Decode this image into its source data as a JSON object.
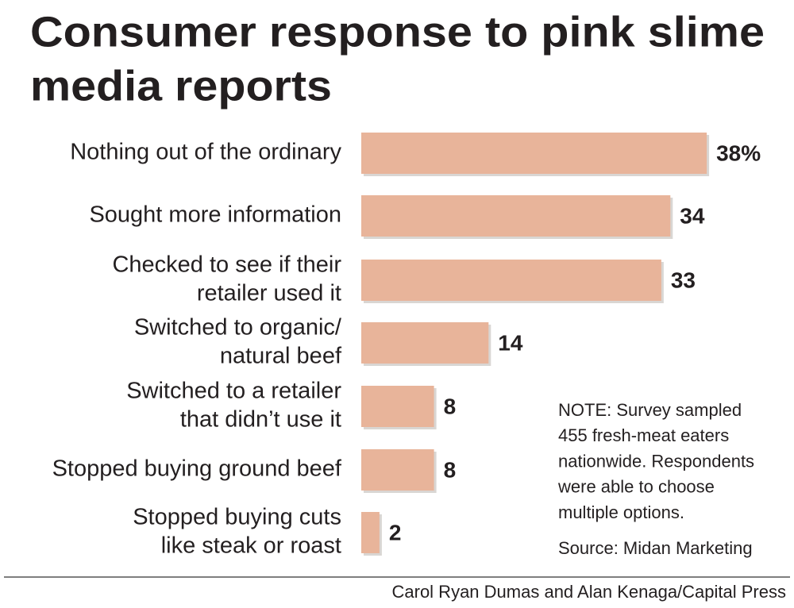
{
  "chart_data": {
    "type": "bar",
    "orientation": "horizontal",
    "title": [
      "Consumer response to pink slime",
      "media reports"
    ],
    "categories": [
      [
        "Nothing out of the ordinary"
      ],
      [
        "Sought more information"
      ],
      [
        "Checked to see if their",
        "retailer used it"
      ],
      [
        "Switched to organic/",
        "natural beef"
      ],
      [
        "Switched to a retailer",
        "that didn’t use it"
      ],
      [
        "Stopped buying ground beef"
      ],
      [
        "Stopped buying cuts",
        "like steak or roast"
      ]
    ],
    "values": [
      38,
      34,
      33,
      14,
      8,
      8,
      2
    ],
    "value_labels": [
      "38%",
      "34",
      "33",
      "14",
      "8",
      "8",
      "2"
    ],
    "color": "#e8b49a",
    "note": [
      "NOTE: Survey sampled",
      "455 fresh-meat eaters",
      "nationwide. Respondents",
      "were able to choose",
      "multiple options."
    ],
    "source": "Source: Midan Marketing",
    "credit": "Carol Ryan Dumas and Alan Kenaga/Capital Press"
  }
}
